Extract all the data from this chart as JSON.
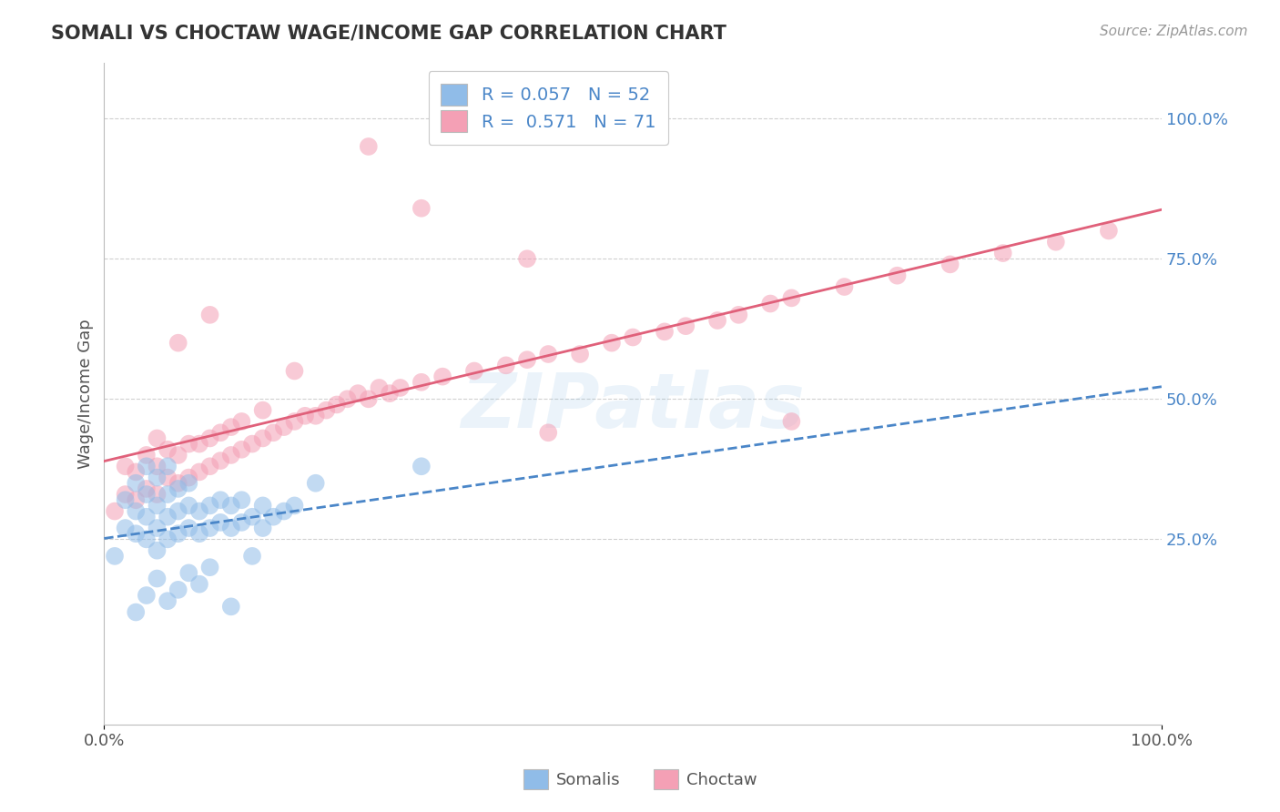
{
  "title": "SOMALI VS CHOCTAW WAGE/INCOME GAP CORRELATION CHART",
  "source": "Source: ZipAtlas.com",
  "ylabel": "Wage/Income Gap",
  "xlim": [
    0.0,
    1.0
  ],
  "ylim": [
    -0.08,
    1.1
  ],
  "x_tick_positions": [
    0.0,
    1.0
  ],
  "x_tick_labels": [
    "0.0%",
    "100.0%"
  ],
  "y_tick_positions": [
    0.25,
    0.5,
    0.75,
    1.0
  ],
  "y_tick_labels": [
    "25.0%",
    "50.0%",
    "75.0%",
    "100.0%"
  ],
  "somali_color": "#90bce8",
  "choctaw_color": "#f4a0b5",
  "somali_line_color": "#4a86c8",
  "choctaw_line_color": "#e0607a",
  "grid_color": "#d0d0d0",
  "legend_R_somali": "0.057",
  "legend_N_somali": "52",
  "legend_R_choctaw": "0.571",
  "legend_N_choctaw": "71",
  "legend_text_color": "#4a86c8",
  "watermark": "ZIPatlas",
  "somali_x": [
    0.01,
    0.02,
    0.02,
    0.03,
    0.03,
    0.03,
    0.04,
    0.04,
    0.04,
    0.04,
    0.05,
    0.05,
    0.05,
    0.05,
    0.06,
    0.06,
    0.06,
    0.06,
    0.07,
    0.07,
    0.07,
    0.08,
    0.08,
    0.08,
    0.09,
    0.09,
    0.1,
    0.1,
    0.11,
    0.11,
    0.12,
    0.12,
    0.13,
    0.13,
    0.14,
    0.15,
    0.15,
    0.16,
    0.17,
    0.18,
    0.03,
    0.04,
    0.05,
    0.06,
    0.07,
    0.08,
    0.09,
    0.1,
    0.12,
    0.14,
    0.2,
    0.3
  ],
  "somali_y": [
    0.22,
    0.27,
    0.32,
    0.26,
    0.3,
    0.35,
    0.25,
    0.29,
    0.33,
    0.38,
    0.23,
    0.27,
    0.31,
    0.36,
    0.25,
    0.29,
    0.33,
    0.38,
    0.26,
    0.3,
    0.34,
    0.27,
    0.31,
    0.35,
    0.26,
    0.3,
    0.27,
    0.31,
    0.28,
    0.32,
    0.27,
    0.31,
    0.28,
    0.32,
    0.29,
    0.27,
    0.31,
    0.29,
    0.3,
    0.31,
    0.12,
    0.15,
    0.18,
    0.14,
    0.16,
    0.19,
    0.17,
    0.2,
    0.13,
    0.22,
    0.35,
    0.38
  ],
  "choctaw_x": [
    0.01,
    0.02,
    0.02,
    0.03,
    0.03,
    0.04,
    0.04,
    0.05,
    0.05,
    0.05,
    0.06,
    0.06,
    0.07,
    0.07,
    0.08,
    0.08,
    0.09,
    0.09,
    0.1,
    0.1,
    0.11,
    0.11,
    0.12,
    0.12,
    0.13,
    0.13,
    0.14,
    0.15,
    0.15,
    0.16,
    0.17,
    0.18,
    0.19,
    0.2,
    0.21,
    0.22,
    0.23,
    0.24,
    0.25,
    0.26,
    0.27,
    0.28,
    0.3,
    0.32,
    0.35,
    0.38,
    0.4,
    0.42,
    0.45,
    0.48,
    0.5,
    0.53,
    0.55,
    0.58,
    0.6,
    0.63,
    0.65,
    0.7,
    0.75,
    0.8,
    0.85,
    0.9,
    0.95,
    0.3,
    0.4,
    0.65,
    0.42,
    0.07,
    0.1,
    0.18,
    0.25
  ],
  "choctaw_y": [
    0.3,
    0.33,
    0.38,
    0.32,
    0.37,
    0.34,
    0.4,
    0.33,
    0.38,
    0.43,
    0.36,
    0.41,
    0.35,
    0.4,
    0.36,
    0.42,
    0.37,
    0.42,
    0.38,
    0.43,
    0.39,
    0.44,
    0.4,
    0.45,
    0.41,
    0.46,
    0.42,
    0.43,
    0.48,
    0.44,
    0.45,
    0.46,
    0.47,
    0.47,
    0.48,
    0.49,
    0.5,
    0.51,
    0.5,
    0.52,
    0.51,
    0.52,
    0.53,
    0.54,
    0.55,
    0.56,
    0.57,
    0.58,
    0.58,
    0.6,
    0.61,
    0.62,
    0.63,
    0.64,
    0.65,
    0.67,
    0.68,
    0.7,
    0.72,
    0.74,
    0.76,
    0.78,
    0.8,
    0.84,
    0.75,
    0.46,
    0.44,
    0.6,
    0.65,
    0.55,
    0.95
  ]
}
